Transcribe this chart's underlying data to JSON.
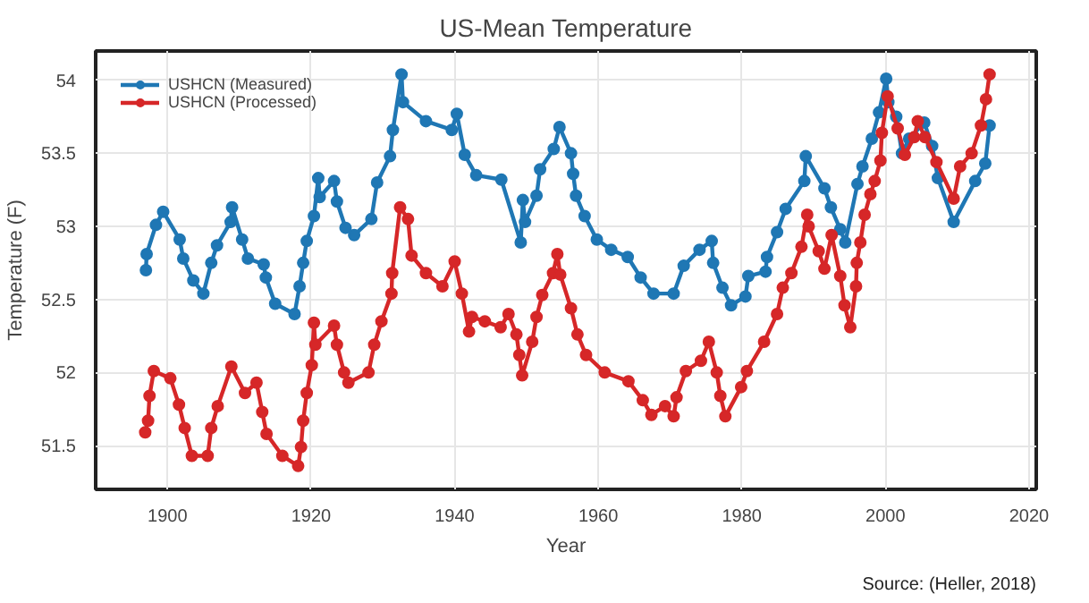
{
  "chart_data": {
    "type": "line",
    "title": "US-Mean Temperature",
    "xlabel": "Year",
    "ylabel": "Temperature (F)",
    "annotations": [
      "Source: (Heller, 2018)"
    ],
    "xlim": [
      1890,
      2021
    ],
    "ylim": [
      51.2,
      54.2
    ],
    "xticks": [
      1900,
      1920,
      1940,
      1960,
      1980,
      2000,
      2020
    ],
    "yticks": [
      51.5,
      52,
      52.5,
      53,
      53.5,
      54
    ],
    "grid": true,
    "legend": "top left",
    "marker": "circle",
    "line_style": "solid",
    "series": [
      {
        "name": "USHCN (Measured)",
        "color": "#1f77b4",
        "x": [
          1897,
          1897.1,
          1898.4,
          1899.4,
          1901.7,
          1902.2,
          1903.6,
          1905,
          1906.1,
          1906.9,
          1908.8,
          1909,
          1910.4,
          1911.2,
          1913.4,
          1913.7,
          1915,
          1917.7,
          1918.4,
          1918.9,
          1919.4,
          1920.4,
          1921,
          1921.2,
          1923.2,
          1923.6,
          1924.8,
          1926,
          1928.4,
          1929.2,
          1931,
          1931.4,
          1932.6,
          1932.8,
          1936,
          1939.6,
          1940.3,
          1941.4,
          1943,
          1946.5,
          1949.2,
          1949.5,
          1949.8,
          1951.4,
          1951.9,
          1953.8,
          1954.6,
          1956.2,
          1956.5,
          1956.9,
          1958.1,
          1959.8,
          1961.8,
          1964.1,
          1965.9,
          1967.7,
          1970.5,
          1971.9,
          1974.1,
          1975.8,
          1976,
          1977.3,
          1978.5,
          1980.5,
          1980.9,
          1983.3,
          1983.5,
          1984.9,
          1986.1,
          1988.7,
          1988.9,
          1991.5,
          1992.4,
          1993.7,
          1994.4,
          1996.1,
          1996.8,
          1998.1,
          1999.1,
          2000.1,
          2000.4,
          2001.5,
          2002.3,
          2003.3,
          2005.4,
          2006.5,
          2007.3,
          2009.5,
          2012.5,
          2013.9,
          2014.5
        ],
        "values": [
          52.7,
          52.81,
          53.01,
          53.1,
          52.91,
          52.78,
          52.63,
          52.54,
          52.75,
          52.87,
          53.03,
          53.13,
          52.91,
          52.78,
          52.74,
          52.65,
          52.47,
          52.4,
          52.59,
          52.75,
          52.9,
          53.07,
          53.33,
          53.2,
          53.31,
          53.17,
          52.99,
          52.94,
          53.05,
          53.3,
          53.48,
          53.66,
          54.04,
          53.85,
          53.72,
          53.66,
          53.77,
          53.49,
          53.35,
          53.32,
          52.89,
          53.18,
          53.03,
          53.21,
          53.39,
          53.53,
          53.68,
          53.5,
          53.36,
          53.21,
          53.07,
          52.91,
          52.84,
          52.79,
          52.65,
          52.54,
          52.54,
          52.73,
          52.84,
          52.9,
          52.75,
          52.58,
          52.46,
          52.52,
          52.66,
          52.69,
          52.79,
          52.96,
          53.12,
          53.31,
          53.48,
          53.26,
          53.13,
          52.98,
          52.89,
          53.29,
          53.41,
          53.6,
          53.78,
          54.01,
          53.85,
          53.75,
          53.5,
          53.6,
          53.71,
          53.55,
          53.33,
          53.03,
          53.31,
          53.43,
          53.69
        ]
      },
      {
        "name": "USHCN (Processed)",
        "color": "#d62728",
        "x": [
          1896.9,
          1897.3,
          1897.5,
          1898.1,
          1900.4,
          1901.6,
          1902.4,
          1903.4,
          1905.6,
          1906.1,
          1907,
          1908.9,
          1910.8,
          1912.4,
          1913.2,
          1913.8,
          1916,
          1918.2,
          1918.6,
          1918.9,
          1919.4,
          1920.1,
          1920.4,
          1920.6,
          1923.2,
          1923.6,
          1924.6,
          1925.2,
          1928,
          1928.8,
          1929.8,
          1931.2,
          1931.3,
          1932.4,
          1933.5,
          1934,
          1936,
          1938.3,
          1940,
          1941,
          1942,
          1942.4,
          1944.2,
          1946.4,
          1947.5,
          1948.6,
          1949,
          1949.4,
          1950.8,
          1951.4,
          1952.2,
          1953.7,
          1954.3,
          1954.7,
          1956.2,
          1957.1,
          1958.3,
          1960.9,
          1964.2,
          1966.2,
          1967.4,
          1969.3,
          1970.5,
          1970.9,
          1972.2,
          1974.3,
          1975.4,
          1976.5,
          1977,
          1977.7,
          1979.9,
          1980.7,
          1983.1,
          1984.9,
          1985.7,
          1986.9,
          1988.3,
          1989.1,
          1989.3,
          1990.7,
          1991.5,
          1992.5,
          1993.7,
          1994.3,
          1995.1,
          1995.9,
          1996,
          1996.5,
          1997.1,
          1997.9,
          1998.5,
          1999.3,
          1999.5,
          2000.3,
          2001.7,
          2002.7,
          2004,
          2004.5,
          2005.5,
          2007.1,
          2009.5,
          2010.4,
          2012,
          2013.3,
          2014,
          2014.5
        ],
        "values": [
          51.59,
          51.67,
          51.84,
          52.01,
          51.96,
          51.78,
          51.62,
          51.43,
          51.43,
          51.62,
          51.77,
          52.04,
          51.86,
          51.93,
          51.73,
          51.58,
          51.43,
          51.36,
          51.49,
          51.67,
          51.86,
          52.05,
          52.34,
          52.19,
          52.32,
          52.19,
          52,
          51.93,
          52,
          52.19,
          52.35,
          52.54,
          52.68,
          53.13,
          53.05,
          52.8,
          52.68,
          52.59,
          52.76,
          52.54,
          52.28,
          52.38,
          52.35,
          52.31,
          52.4,
          52.26,
          52.12,
          51.98,
          52.21,
          52.38,
          52.53,
          52.68,
          52.81,
          52.67,
          52.44,
          52.26,
          52.12,
          52,
          51.94,
          51.81,
          51.71,
          51.77,
          51.7,
          51.83,
          52.01,
          52.08,
          52.21,
          52,
          51.84,
          51.7,
          51.9,
          52.01,
          52.21,
          52.4,
          52.58,
          52.68,
          52.86,
          53.08,
          53,
          52.83,
          52.71,
          52.94,
          52.66,
          52.46,
          52.31,
          52.59,
          52.75,
          52.89,
          53.08,
          53.22,
          53.31,
          53.45,
          53.64,
          53.89,
          53.67,
          53.49,
          53.61,
          53.72,
          53.61,
          53.44,
          53.19,
          53.41,
          53.5,
          53.69,
          53.87,
          54.04
        ]
      }
    ]
  }
}
